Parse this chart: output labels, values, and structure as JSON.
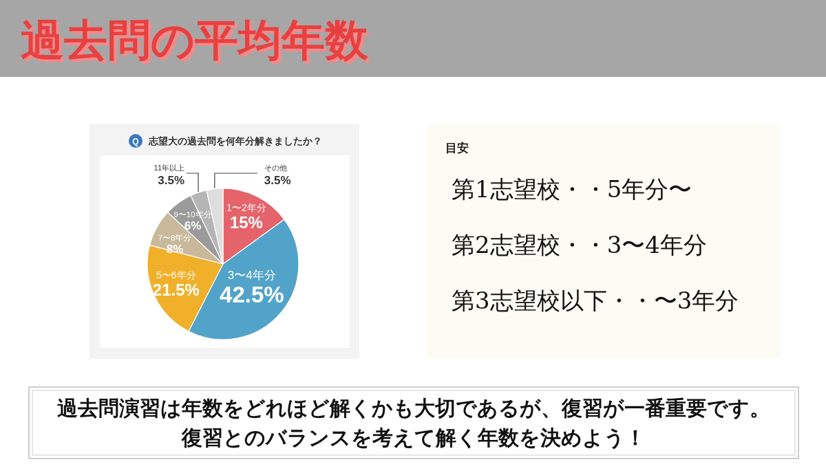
{
  "chart_data": {
    "type": "pie",
    "title": "過去問の平均年数",
    "subtitle": "志望大の過去問を何年分解きましたか？",
    "categories": [
      "1〜2年分",
      "3〜4年分",
      "5〜6年分",
      "7〜8年分",
      "9〜10年分",
      "11年以上",
      "その他"
    ],
    "values": [
      15,
      42.5,
      21.5,
      8,
      6,
      3.5,
      3.5
    ],
    "colors": [
      "#e5636a",
      "#52a3c9",
      "#f0b02a",
      "#c9b99a",
      "#9b9b9b",
      "#b5b5b5",
      "#dedede"
    ],
    "value_labels": [
      "15%",
      "42.5%",
      "21.5%",
      "8%",
      "6%",
      "3.5%",
      "3.5%"
    ],
    "annotations": [
      "Q",
      "目安",
      "第1志望校・・5年分〜",
      "第2志望校・・3〜4年分",
      "第3志望校以下・・〜3年分",
      "過去問演習は年数をどれほど解くかも大切であるが、復習が一番重要です。",
      "復習とのバランスを考えて解く年数を決めよう！"
    ]
  }
}
